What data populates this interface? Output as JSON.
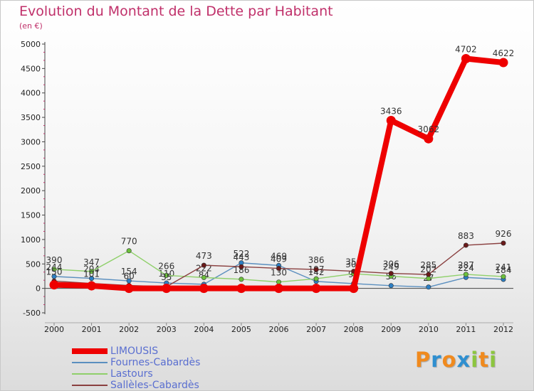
{
  "header": {
    "title": "Evolution du Montant de la Dette par Habitant",
    "unit": "(en €)"
  },
  "brand": {
    "letters": [
      "P",
      "r",
      "o",
      "x",
      "i",
      "t",
      "i"
    ],
    "colors": [
      "#f08a1e",
      "#2f8fd0",
      "#f08a1e",
      "#2f8fd0",
      "#8cc63f",
      "#f08a1e",
      "#8cc63f"
    ]
  },
  "chart_data": {
    "type": "line",
    "title": "Evolution du Montant de la Dette par Habitant",
    "ylabel": "(en €)",
    "xlabel": "",
    "categories": [
      "2000",
      "2001",
      "2002",
      "2003",
      "2004",
      "2005",
      "2006",
      "2007",
      "2008",
      "2009",
      "2010",
      "2011",
      "2012"
    ],
    "ylim": [
      -500,
      5000
    ],
    "yticks": [
      -500,
      0,
      500,
      1000,
      1500,
      2000,
      2500,
      3000,
      3500,
      4000,
      4500,
      5000
    ],
    "grid": false,
    "legend_position": "bottom-left",
    "series": [
      {
        "name": "Fournes-Cabardès",
        "color": "#5b8fbf",
        "marker": "#2d7fc4",
        "values": [
          244,
          204,
          154,
          110,
          84,
          522,
          469,
          142,
          98,
          56,
          27,
          224,
          184
        ],
        "labels": [
          "244",
          "204",
          "154",
          "110",
          "84",
          "522",
          "469",
          "142",
          "98",
          "56",
          "27",
          "224",
          "184"
        ]
      },
      {
        "name": "Lastours",
        "color": "#8fd06a",
        "marker": "#6cc03c",
        "values": [
          390,
          347,
          770,
          266,
          222,
          186,
          130,
          197,
          300,
          249,
          202,
          287,
          241
        ],
        "labels": [
          "390",
          "347",
          "770",
          "266",
          "222",
          "186",
          "130",
          "197",
          "300",
          "249",
          "202",
          "287",
          "241"
        ]
      },
      {
        "name": "Sallèles-Cabardès",
        "color": "#8a4040",
        "marker": "#6a1a1a",
        "values": [
          150,
          101,
          60,
          35,
          473,
          443,
          409,
          386,
          350,
          306,
          285,
          883,
          926
        ],
        "labels": [
          "150",
          "101",
          "60",
          "35",
          "473",
          "443",
          "409",
          "386",
          "350",
          "306",
          "285",
          "883",
          "926"
        ]
      },
      {
        "name": "LIMOUSIS",
        "color": "#ee0000",
        "marker": "#ee0000",
        "values": [
          72,
          52,
          0,
          0,
          0,
          0,
          0,
          0,
          0,
          3436,
          3062,
          4702,
          4622
        ],
        "labels": [
          "",
          "",
          "",
          "",
          "",
          "",
          "",
          "",
          "",
          "3436",
          "3062",
          "4702",
          "4622"
        ]
      }
    ]
  },
  "legend": [
    {
      "name": "LIMOUSIS",
      "color": "#ee0000",
      "thick": true
    },
    {
      "name": "Fournes-Cabardès",
      "color": "#5b8fbf",
      "thick": false
    },
    {
      "name": "Lastours",
      "color": "#8fd06a",
      "thick": false
    },
    {
      "name": "Sallèles-Cabardès",
      "color": "#8a4040",
      "thick": false
    }
  ]
}
